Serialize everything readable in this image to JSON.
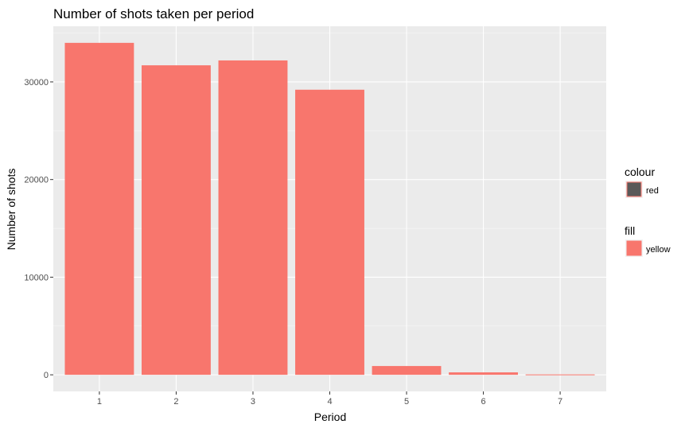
{
  "chart_data": {
    "type": "bar",
    "title": "Number of shots taken per period",
    "xlabel": "Period",
    "ylabel": "Number of shots",
    "categories": [
      "1",
      "2",
      "3",
      "4",
      "5",
      "6",
      "7"
    ],
    "values": [
      34000,
      31700,
      32200,
      29200,
      900,
      250,
      40
    ],
    "ylim": [
      -1700,
      35700
    ],
    "y_ticks": [
      0,
      10000,
      20000,
      30000
    ],
    "y_tick_labels": [
      "0",
      "10000",
      "20000",
      "30000"
    ],
    "grid": true,
    "legend_position": "right",
    "legend": [
      {
        "title": "colour",
        "label": "red",
        "swatch_color": "#595959",
        "swatch_border": "#f8766d"
      },
      {
        "title": "fill",
        "label": "yellow",
        "swatch_color": "#f8766d",
        "swatch_border": "#f8766d"
      }
    ],
    "colors": {
      "bar": "#f8766d",
      "panel": "#ebebeb",
      "grid_major": "#ffffff"
    }
  }
}
